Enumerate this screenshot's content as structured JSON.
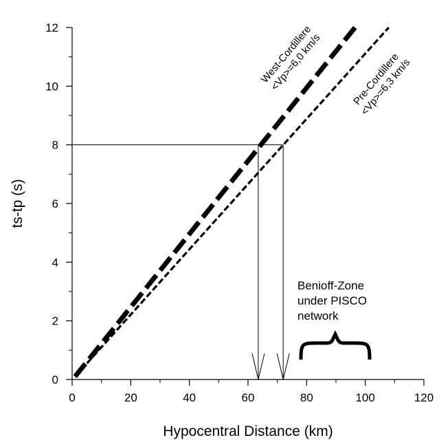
{
  "chart_data": {
    "type": "line",
    "title": "",
    "xlabel": "Hypocentral Distance (km)",
    "ylabel": "ts-tp (s)",
    "xlim": [
      0,
      120
    ],
    "ylim": [
      0,
      12
    ],
    "x_ticks": [
      0,
      20,
      40,
      60,
      80,
      100,
      120
    ],
    "y_ticks": [
      0,
      2,
      4,
      6,
      8,
      10,
      12
    ],
    "x_tick_labels": [
      "0",
      "20",
      "40",
      "60",
      "80",
      "100",
      "120"
    ],
    "y_tick_labels": [
      "0",
      "2",
      "4",
      "6",
      "8",
      "10",
      "12"
    ],
    "grid": false,
    "series": [
      {
        "name": "West-Cordillere <Vp>=6,0 km/s",
        "label_line1": "West-Cordillere",
        "label_line2": "<Vp>=6,0 km/s",
        "style": "long-dash",
        "color": "#000000",
        "x": [
          1,
          96.5
        ],
        "y": [
          0.1,
          12
        ]
      },
      {
        "name": "Pre-Cordillere <Vp>=6,3 km/s",
        "label_line1": "Pre-Cordillere",
        "label_line2": "<Vp>=6,3 km/s",
        "style": "short-dash",
        "color": "#000000",
        "x": [
          1,
          108
        ],
        "y": [
          0.1,
          12
        ]
      }
    ],
    "reference": {
      "ts_tp": 8,
      "distances": [
        63.5,
        72
      ]
    },
    "annotation": {
      "lines": [
        "Benioff-Zone",
        "under PISCO",
        "network"
      ],
      "range_x": [
        78,
        101
      ]
    }
  }
}
